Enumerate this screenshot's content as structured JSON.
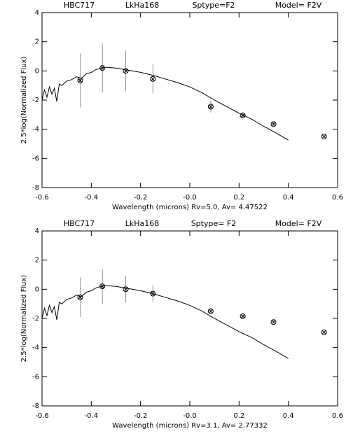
{
  "chart_data": [
    {
      "type": "scatter",
      "title_parts": [
        "HBC717",
        "LkHa168",
        "Sptype=F2",
        "Model= F2V"
      ],
      "x_label": "Wavelength (microns) Rv=5.0, Av=      4.47522",
      "y_label": "2.5*log(Normalized Flux)",
      "xlim": [
        -0.6,
        0.6
      ],
      "ylim": [
        -8,
        4
      ],
      "xticks": [
        -0.6,
        -0.4,
        -0.2,
        {
          "value": 0,
          "label": "-0.0"
        },
        0.2,
        0.4,
        0.6
      ],
      "yticks": [
        -8,
        -6,
        -4,
        -2,
        0,
        2,
        4
      ],
      "points": {
        "x": [
          -0.445,
          -0.355,
          -0.26,
          -0.15,
          0.085,
          0.215,
          0.34,
          0.545
        ],
        "y": [
          -0.65,
          0.2,
          0.0,
          -0.55,
          -2.45,
          -3.05,
          -3.65,
          -4.5
        ],
        "err": [
          1.85,
          1.7,
          1.4,
          1.0,
          0.4,
          0.2,
          0.1,
          0
        ]
      },
      "model": {
        "x": [
          -0.6,
          -0.59,
          -0.58,
          -0.57,
          -0.56,
          -0.55,
          -0.54,
          -0.53,
          -0.52,
          -0.5,
          -0.48,
          -0.46,
          -0.44,
          -0.42,
          -0.4,
          -0.38,
          -0.36,
          -0.34,
          -0.3,
          -0.25,
          -0.2,
          -0.15,
          -0.1,
          -0.05,
          0,
          0.05,
          0.1,
          0.15,
          0.2,
          0.25,
          0.3,
          0.35,
          0.4
        ],
        "y": [
          -2.0,
          -1.3,
          -1.8,
          -1.1,
          -1.6,
          -1.2,
          -2.1,
          -0.9,
          -1.0,
          -0.7,
          -0.6,
          -0.4,
          -0.5,
          -0.2,
          -0.1,
          0.1,
          0.2,
          0.25,
          0.2,
          0.05,
          -0.1,
          -0.3,
          -0.55,
          -0.8,
          -1.1,
          -1.5,
          -2.0,
          -2.45,
          -2.9,
          -3.3,
          -3.8,
          -4.25,
          -4.75
        ]
      }
    },
    {
      "type": "scatter",
      "title_parts": [
        "HBC717",
        "LkHa168",
        "Sptype= F2",
        "Model= F2V"
      ],
      "x_label": "Wavelength (microns) Rv=3.1, Av=      2.77332",
      "y_label": "2.5*log(Normalized Flux)",
      "xlim": [
        -0.6,
        0.6
      ],
      "ylim": [
        -8,
        4
      ],
      "xticks": [
        -0.6,
        -0.4,
        -0.2,
        {
          "value": 0,
          "label": "-0.0"
        },
        0.2,
        0.4,
        0.6
      ],
      "yticks": [
        -8,
        -6,
        -4,
        -2,
        0,
        2,
        4
      ],
      "points": {
        "x": [
          -0.445,
          -0.355,
          -0.26,
          -0.15,
          0.085,
          0.215,
          0.34,
          0.545
        ],
        "y": [
          -0.55,
          0.2,
          0.0,
          -0.3,
          -1.5,
          -1.85,
          -2.25,
          -2.95
        ],
        "err": [
          1.35,
          1.2,
          0.9,
          0.6,
          0.2,
          0.1,
          0.1,
          0
        ]
      },
      "model": {
        "x": [
          -0.6,
          -0.59,
          -0.58,
          -0.57,
          -0.56,
          -0.55,
          -0.54,
          -0.53,
          -0.52,
          -0.5,
          -0.48,
          -0.46,
          -0.44,
          -0.42,
          -0.4,
          -0.38,
          -0.36,
          -0.34,
          -0.3,
          -0.25,
          -0.2,
          -0.15,
          -0.1,
          -0.05,
          0,
          0.05,
          0.1,
          0.15,
          0.2,
          0.25,
          0.3,
          0.35,
          0.4
        ],
        "y": [
          -2.0,
          -1.3,
          -1.8,
          -1.1,
          -1.6,
          -1.2,
          -2.1,
          -0.9,
          -1.0,
          -0.7,
          -0.6,
          -0.4,
          -0.5,
          -0.2,
          -0.1,
          0.1,
          0.2,
          0.25,
          0.2,
          0.05,
          -0.1,
          -0.3,
          -0.55,
          -0.8,
          -1.1,
          -1.5,
          -2.0,
          -2.45,
          -2.9,
          -3.3,
          -3.8,
          -4.25,
          -4.75
        ]
      }
    }
  ]
}
